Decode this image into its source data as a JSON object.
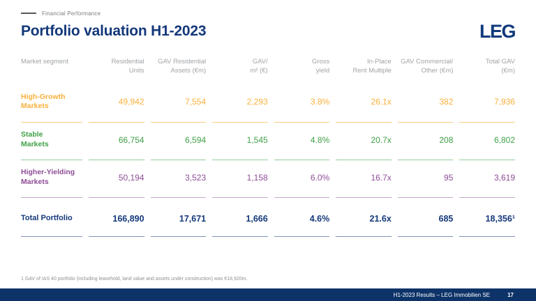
{
  "slide": {
    "eyebrow": "Financial Performance",
    "title": "Portfolio valuation H1-2023",
    "logo": "LEG"
  },
  "colors": {
    "navy": "#14387A",
    "footer_bar": "#0D3368",
    "high_growth": "#F9B03C",
    "stable": "#3FA047",
    "higher_yielding": "#8E4D97",
    "header_text": "#A0A3A7"
  },
  "table": {
    "columns": [
      {
        "l1": "Market segment",
        "l2": ""
      },
      {
        "l1": "Residential",
        "l2": "Units"
      },
      {
        "l1": "GAV Residential",
        "l2": "Assets (€m)"
      },
      {
        "l1": "GAV/",
        "l2": "m² (€)"
      },
      {
        "l1": "Gross",
        "l2": "yield"
      },
      {
        "l1": "In-Place",
        "l2": "Rent Multiple"
      },
      {
        "l1": "GAV Commercial/",
        "l2": "Other (€m)"
      },
      {
        "l1": "Total GAV",
        "l2": "(€m)"
      }
    ],
    "rows": [
      {
        "segment": "High-Growth\nMarkets",
        "color": "#F9B03C",
        "values": [
          "49,942",
          "7,554",
          "2,293",
          "3.8%",
          "26.1x",
          "382",
          "7,936"
        ]
      },
      {
        "segment": "Stable\nMarkets",
        "color": "#3FA047",
        "values": [
          "66,754",
          "6,594",
          "1,545",
          "4.8%",
          "20.7x",
          "208",
          "6,802"
        ]
      },
      {
        "segment": "Higher-Yielding\nMarkets",
        "color": "#8E4D97",
        "values": [
          "50,194",
          "3,523",
          "1,158",
          "6.0%",
          "16.7x",
          "95",
          "3,619"
        ]
      }
    ],
    "total_row": {
      "segment": "Total Portfolio",
      "color": "#14387A",
      "values": [
        "166,890",
        "17,671",
        "1,666",
        "4.6%",
        "21.6x",
        "685",
        "18,356¹"
      ]
    }
  },
  "footnote": "1 GAV of IAS 40 portfolio (including leasehold, land value and assets under construction) was €18,920m.",
  "footer": {
    "text": "H1-2023 Results – LEG Immobilien SE",
    "page": "17"
  }
}
